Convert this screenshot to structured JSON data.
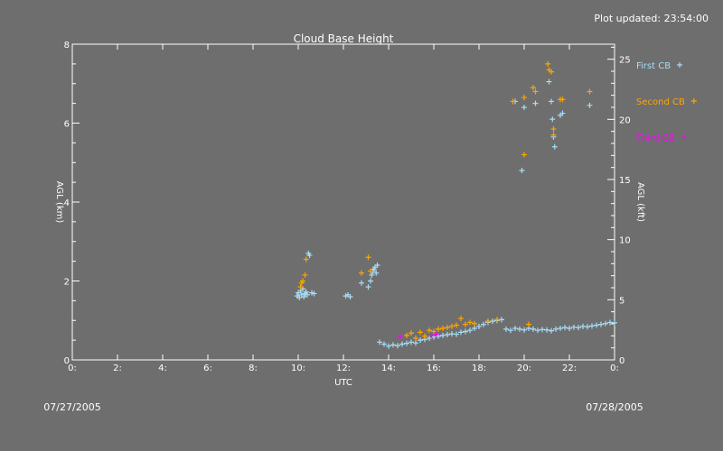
{
  "header": {
    "plot_updated": "Plot updated: 23:54:00"
  },
  "footer": {
    "start_date": "07/27/2005",
    "end_date": "07/28/2005"
  },
  "chart_data": {
    "type": "scatter",
    "title": "Cloud Base Height",
    "xlabel": "UTC",
    "ylabel_left": "AGL (km)",
    "ylabel_right": "AGL (kft)",
    "xlim": [
      0,
      24
    ],
    "ylim": [
      0,
      8
    ],
    "ylim_right": [
      0,
      26.25
    ],
    "x_ticks": [
      0,
      2,
      4,
      6,
      8,
      10,
      12,
      14,
      16,
      18,
      20,
      22,
      24
    ],
    "x_tick_labels": [
      "0:",
      "2:",
      "4:",
      "6:",
      "8:",
      "10:",
      "12:",
      "14:",
      "16:",
      "18:",
      "20:",
      "22:",
      "0:"
    ],
    "y_ticks": [
      0,
      2,
      4,
      6,
      8
    ],
    "y_tick_labels": [
      "0",
      "2",
      "4",
      "6",
      "8"
    ],
    "y_right_ticks": [
      0,
      5,
      10,
      15,
      20,
      25
    ],
    "y_right_tick_labels": [
      "0",
      "5",
      "10",
      "15",
      "20",
      "25"
    ],
    "legend_position": "right",
    "colors": {
      "background": "#6e6e6e",
      "axes": "#ffffff",
      "first_cb": "#a8dcf6",
      "second_cb": "#ffa500",
      "third_cb": "#ff00ff"
    },
    "series": [
      {
        "name": "First CB",
        "marker": "+",
        "color": "#a8dcf6",
        "points": [
          [
            9.95,
            1.62
          ],
          [
            10.0,
            1.7
          ],
          [
            10.05,
            1.58
          ],
          [
            10.1,
            1.75
          ],
          [
            10.15,
            1.65
          ],
          [
            10.2,
            1.8
          ],
          [
            10.25,
            1.6
          ],
          [
            10.3,
            1.68
          ],
          [
            10.35,
            1.72
          ],
          [
            10.4,
            1.65
          ],
          [
            10.45,
            2.7
          ],
          [
            10.5,
            2.65
          ],
          [
            10.6,
            1.7
          ],
          [
            10.7,
            1.68
          ],
          [
            12.1,
            1.62
          ],
          [
            12.2,
            1.65
          ],
          [
            12.3,
            1.6
          ],
          [
            12.8,
            1.95
          ],
          [
            13.1,
            1.85
          ],
          [
            13.2,
            2.0
          ],
          [
            13.25,
            2.15
          ],
          [
            13.3,
            2.25
          ],
          [
            13.35,
            2.3
          ],
          [
            13.4,
            2.35
          ],
          [
            13.45,
            2.2
          ],
          [
            13.5,
            2.4
          ],
          [
            13.6,
            0.45
          ],
          [
            13.8,
            0.4
          ],
          [
            14.0,
            0.35
          ],
          [
            14.2,
            0.38
          ],
          [
            14.4,
            0.36
          ],
          [
            14.6,
            0.4
          ],
          [
            14.8,
            0.42
          ],
          [
            15.0,
            0.45
          ],
          [
            15.2,
            0.43
          ],
          [
            15.4,
            0.5
          ],
          [
            15.6,
            0.52
          ],
          [
            15.8,
            0.55
          ],
          [
            16.0,
            0.58
          ],
          [
            16.2,
            0.6
          ],
          [
            16.4,
            0.62
          ],
          [
            16.6,
            0.64
          ],
          [
            16.8,
            0.66
          ],
          [
            17.0,
            0.65
          ],
          [
            17.2,
            0.7
          ],
          [
            17.4,
            0.72
          ],
          [
            17.6,
            0.75
          ],
          [
            17.8,
            0.8
          ],
          [
            18.0,
            0.85
          ],
          [
            18.2,
            0.9
          ],
          [
            18.4,
            0.95
          ],
          [
            18.6,
            0.98
          ],
          [
            18.8,
            1.0
          ],
          [
            19.0,
            1.02
          ],
          [
            19.2,
            0.78
          ],
          [
            19.4,
            0.75
          ],
          [
            19.6,
            0.8
          ],
          [
            19.8,
            0.78
          ],
          [
            20.0,
            0.76
          ],
          [
            20.2,
            0.8
          ],
          [
            20.4,
            0.78
          ],
          [
            20.6,
            0.75
          ],
          [
            20.8,
            0.77
          ],
          [
            21.0,
            0.76
          ],
          [
            21.2,
            0.74
          ],
          [
            21.4,
            0.78
          ],
          [
            21.6,
            0.8
          ],
          [
            21.8,
            0.82
          ],
          [
            22.0,
            0.8
          ],
          [
            22.2,
            0.83
          ],
          [
            22.4,
            0.82
          ],
          [
            22.6,
            0.85
          ],
          [
            22.8,
            0.84
          ],
          [
            23.0,
            0.86
          ],
          [
            23.2,
            0.88
          ],
          [
            23.4,
            0.9
          ],
          [
            23.6,
            0.92
          ],
          [
            23.8,
            0.95
          ],
          [
            24.0,
            0.94
          ],
          [
            19.6,
            6.55
          ],
          [
            19.9,
            4.8
          ],
          [
            20.0,
            6.4
          ],
          [
            20.5,
            6.5
          ],
          [
            21.1,
            7.05
          ],
          [
            21.2,
            6.55
          ],
          [
            21.25,
            6.1
          ],
          [
            21.3,
            5.65
          ],
          [
            21.35,
            5.4
          ],
          [
            21.6,
            6.2
          ],
          [
            21.7,
            6.25
          ],
          [
            22.9,
            6.45
          ]
        ]
      },
      {
        "name": "Second CB",
        "marker": "+",
        "color": "#ffa500",
        "points": [
          [
            10.1,
            1.85
          ],
          [
            10.15,
            1.95
          ],
          [
            10.2,
            2.0
          ],
          [
            10.3,
            2.15
          ],
          [
            10.35,
            2.55
          ],
          [
            12.8,
            2.2
          ],
          [
            13.1,
            2.6
          ],
          [
            13.2,
            2.25
          ],
          [
            14.8,
            0.62
          ],
          [
            15.0,
            0.68
          ],
          [
            15.2,
            0.55
          ],
          [
            15.4,
            0.7
          ],
          [
            15.6,
            0.6
          ],
          [
            15.8,
            0.75
          ],
          [
            16.0,
            0.72
          ],
          [
            16.2,
            0.78
          ],
          [
            16.4,
            0.8
          ],
          [
            16.6,
            0.82
          ],
          [
            16.8,
            0.85
          ],
          [
            17.0,
            0.88
          ],
          [
            17.2,
            1.05
          ],
          [
            17.4,
            0.9
          ],
          [
            17.6,
            0.95
          ],
          [
            17.8,
            0.92
          ],
          [
            18.4,
            0.98
          ],
          [
            18.8,
            1.02
          ],
          [
            20.2,
            0.9
          ],
          [
            19.5,
            6.55
          ],
          [
            20.0,
            6.65
          ],
          [
            20.0,
            5.2
          ],
          [
            20.4,
            6.9
          ],
          [
            20.5,
            6.8
          ],
          [
            21.05,
            7.5
          ],
          [
            21.1,
            7.35
          ],
          [
            21.2,
            7.3
          ],
          [
            21.3,
            5.85
          ],
          [
            21.3,
            5.7
          ],
          [
            21.6,
            6.6
          ],
          [
            21.7,
            6.6
          ],
          [
            22.9,
            6.8
          ]
        ]
      },
      {
        "name": "Third CB",
        "marker": "+",
        "color": "#ff00ff",
        "points": [
          [
            14.5,
            0.6
          ],
          [
            15.9,
            0.62
          ],
          [
            16.1,
            0.65
          ]
        ]
      }
    ]
  }
}
